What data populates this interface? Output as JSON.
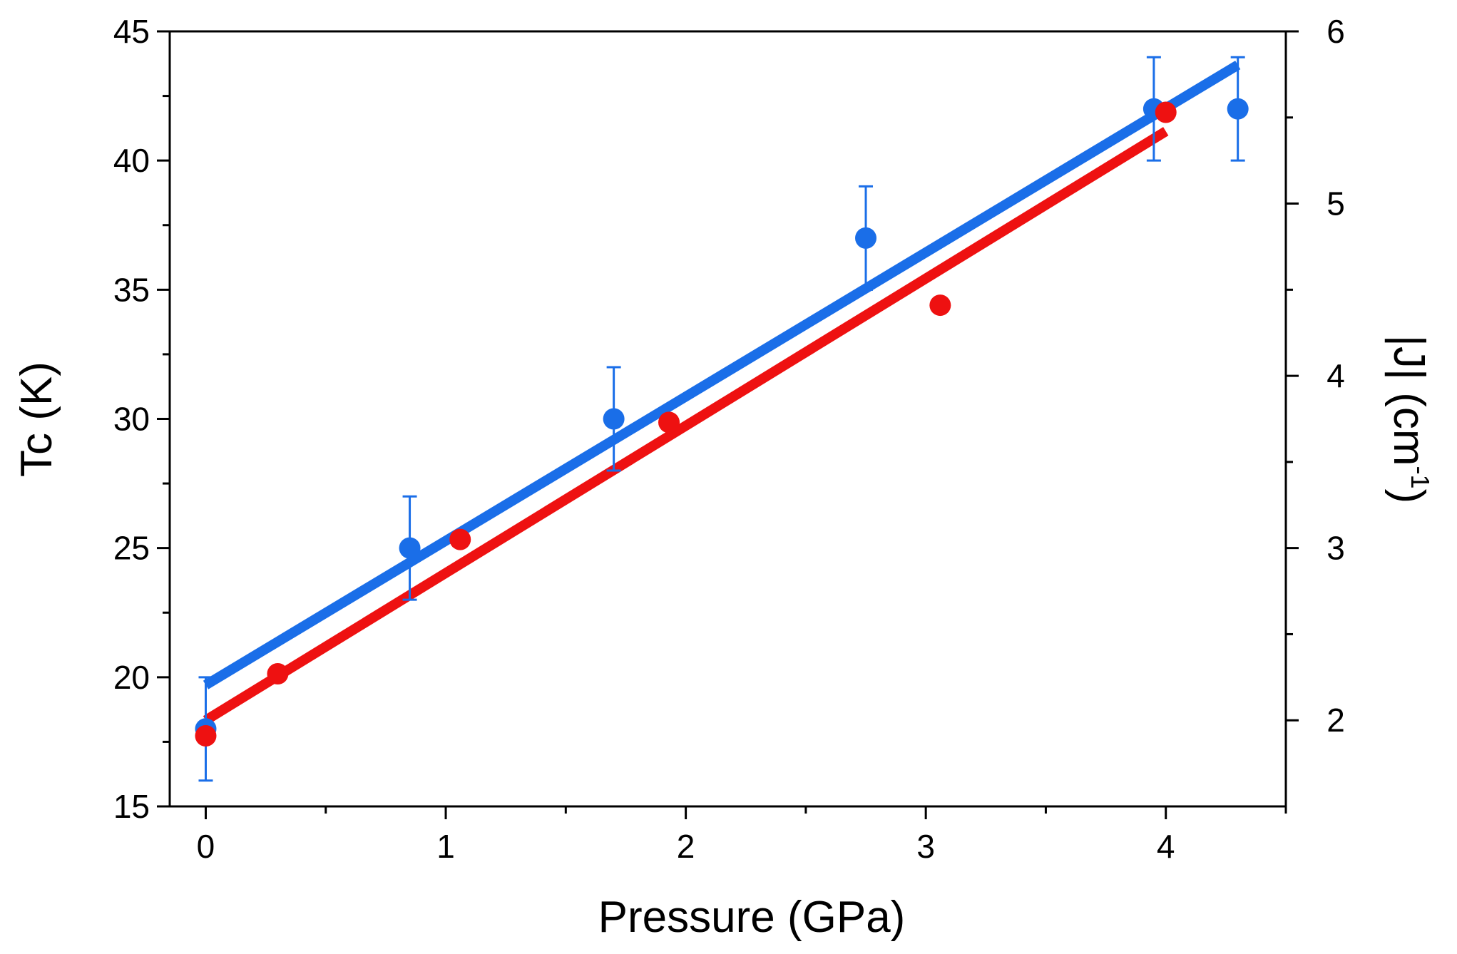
{
  "chart_data": {
    "type": "scatter",
    "xlabel": "Pressure (GPa)",
    "ylabel_left": "Tc (K)",
    "ylabel_right_main": "|J| (cm",
    "ylabel_right_sup": "-1",
    "ylabel_right_close": ")",
    "xlim": [
      -0.15,
      4.5
    ],
    "ylim_left": [
      15,
      45
    ],
    "ylim_right": [
      1.5,
      6
    ],
    "x_ticks": [
      0,
      1,
      2,
      3,
      4
    ],
    "x_tick_labels": [
      "0",
      "1",
      "2",
      "3",
      "4"
    ],
    "x_minor_ticks": [
      0.5,
      1.5,
      2.5,
      3.5,
      4.5
    ],
    "y_left_ticks": [
      15,
      20,
      25,
      30,
      35,
      40,
      45
    ],
    "y_left_tick_labels": [
      "15",
      "20",
      "25",
      "30",
      "35",
      "40",
      "45"
    ],
    "y_left_minor_ticks": [
      17.5,
      22.5,
      27.5,
      32.5,
      37.5,
      42.5
    ],
    "y_right_ticks": [
      2,
      3,
      4,
      5,
      6
    ],
    "y_right_tick_labels": [
      "2",
      "3",
      "4",
      "5",
      "6"
    ],
    "y_right_minor_ticks": [
      2.5,
      3.5,
      4.5,
      5.5
    ],
    "grid": false,
    "series": [
      {
        "name": "Tc",
        "axis": "left",
        "color": "#1a6ee8",
        "x": [
          0,
          0.85,
          1.7,
          2.75,
          3.95,
          4.3
        ],
        "y": [
          18,
          25,
          30,
          37,
          42,
          42
        ],
        "yerr": [
          2,
          2,
          2,
          2,
          2,
          2
        ],
        "fit": {
          "x": [
            0,
            4.3
          ],
          "y": [
            19.7,
            43.7
          ]
        }
      },
      {
        "name": "|J|",
        "axis": "right",
        "color": "#ee1111",
        "x": [
          0,
          0.3,
          1.06,
          1.93,
          3.06,
          4.0
        ],
        "y": [
          1.91,
          2.27,
          3.05,
          3.73,
          4.41,
          5.53
        ],
        "fit": {
          "x": [
            0,
            4.0
          ],
          "y": [
            2.0,
            5.42
          ]
        }
      }
    ]
  }
}
